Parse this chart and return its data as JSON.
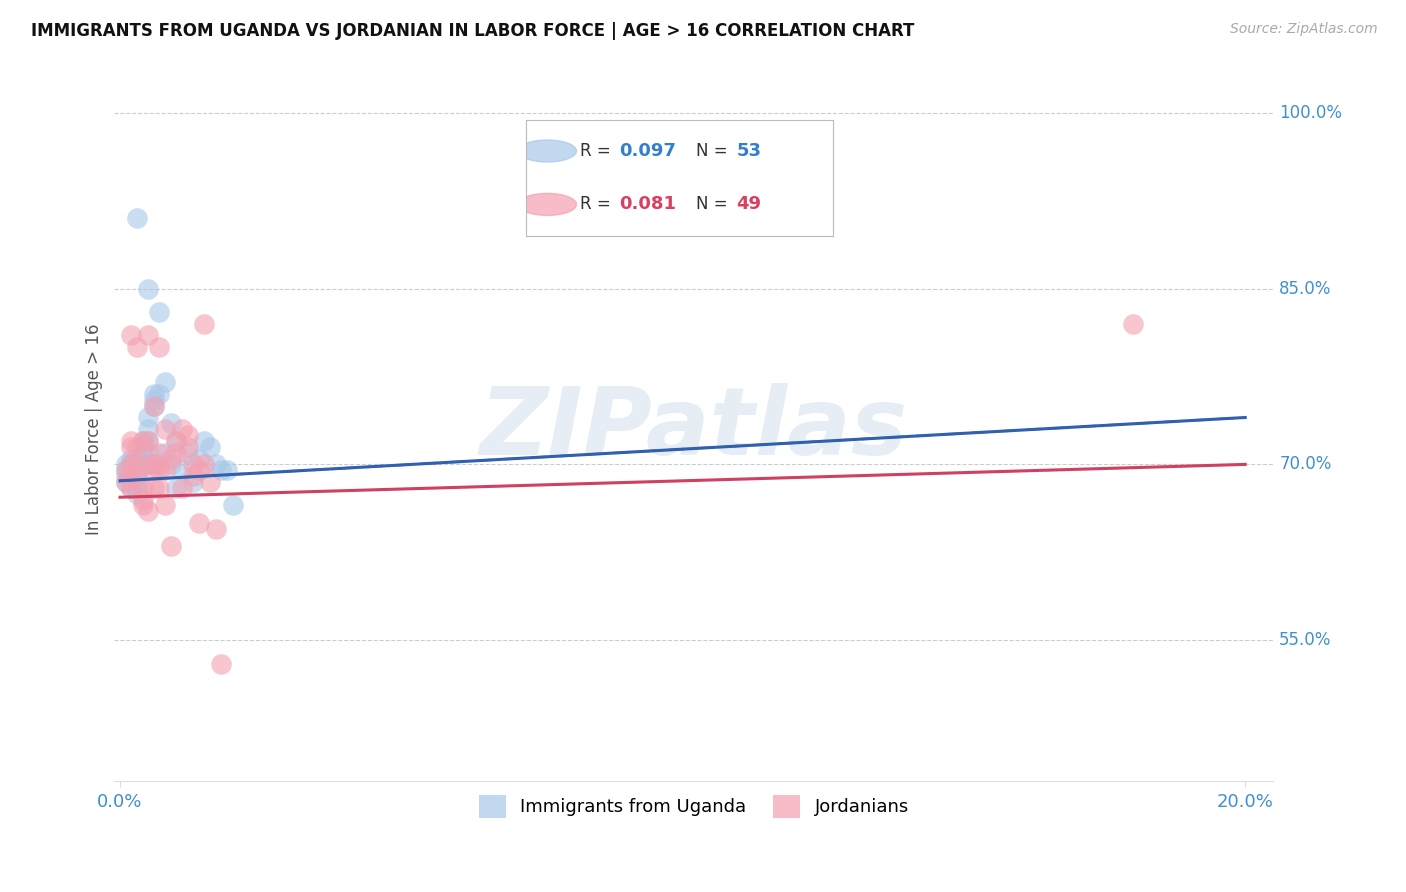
{
  "title": "IMMIGRANTS FROM UGANDA VS JORDANIAN IN LABOR FORCE | AGE > 16 CORRELATION CHART",
  "source": "Source: ZipAtlas.com",
  "ylabel": "In Labor Force | Age > 16",
  "legend1_r": "0.097",
  "legend1_n": "53",
  "legend2_r": "0.081",
  "legend2_n": "49",
  "legend_label1": "Immigrants from Uganda",
  "legend_label2": "Jordanians",
  "blue_scatter": "#a8c8e8",
  "pink_scatter": "#f4a0b0",
  "blue_line": "#3060b0",
  "pink_line": "#d04060",
  "ytick_color": "#4090d0",
  "xtick_color": "#4090d0",
  "grid_color": "#cccccc",
  "bg_color": "#ffffff",
  "watermark": "ZIPatlas",
  "uganda_x": [
    0.001,
    0.001,
    0.001,
    0.001,
    0.002,
    0.002,
    0.002,
    0.002,
    0.002,
    0.002,
    0.002,
    0.003,
    0.003,
    0.003,
    0.003,
    0.003,
    0.003,
    0.003,
    0.004,
    0.004,
    0.004,
    0.004,
    0.004,
    0.005,
    0.005,
    0.005,
    0.005,
    0.005,
    0.006,
    0.006,
    0.006,
    0.006,
    0.007,
    0.007,
    0.007,
    0.008,
    0.008,
    0.009,
    0.009,
    0.01,
    0.01,
    0.011,
    0.012,
    0.013,
    0.014,
    0.015,
    0.016,
    0.017,
    0.018,
    0.019,
    0.02,
    0.005,
    0.003
  ],
  "uganda_y": [
    0.7,
    0.69,
    0.695,
    0.685,
    0.695,
    0.7,
    0.705,
    0.68,
    0.69,
    0.695,
    0.7,
    0.7,
    0.695,
    0.705,
    0.69,
    0.68,
    0.675,
    0.685,
    0.72,
    0.715,
    0.71,
    0.7,
    0.705,
    0.74,
    0.73,
    0.72,
    0.71,
    0.7,
    0.75,
    0.755,
    0.76,
    0.7,
    0.83,
    0.76,
    0.7,
    0.77,
    0.71,
    0.735,
    0.7,
    0.72,
    0.68,
    0.695,
    0.71,
    0.685,
    0.705,
    0.72,
    0.715,
    0.7,
    0.695,
    0.695,
    0.665,
    0.85,
    0.91
  ],
  "jordan_x": [
    0.001,
    0.001,
    0.002,
    0.002,
    0.002,
    0.002,
    0.002,
    0.002,
    0.003,
    0.003,
    0.003,
    0.003,
    0.004,
    0.004,
    0.004,
    0.004,
    0.005,
    0.005,
    0.005,
    0.005,
    0.006,
    0.006,
    0.006,
    0.006,
    0.007,
    0.007,
    0.007,
    0.007,
    0.008,
    0.008,
    0.008,
    0.009,
    0.009,
    0.01,
    0.01,
    0.011,
    0.011,
    0.012,
    0.012,
    0.013,
    0.013,
    0.014,
    0.014,
    0.015,
    0.015,
    0.016,
    0.017,
    0.018,
    0.18
  ],
  "jordan_y": [
    0.685,
    0.695,
    0.7,
    0.72,
    0.68,
    0.69,
    0.81,
    0.715,
    0.8,
    0.7,
    0.715,
    0.69,
    0.72,
    0.68,
    0.665,
    0.67,
    0.81,
    0.7,
    0.72,
    0.66,
    0.75,
    0.7,
    0.68,
    0.695,
    0.71,
    0.695,
    0.68,
    0.8,
    0.73,
    0.695,
    0.665,
    0.705,
    0.63,
    0.72,
    0.71,
    0.73,
    0.68,
    0.725,
    0.715,
    0.7,
    0.69,
    0.695,
    0.65,
    0.7,
    0.82,
    0.685,
    0.645,
    0.53,
    0.82
  ],
  "xlim": [
    -0.001,
    0.205
  ],
  "ylim": [
    0.43,
    1.03
  ],
  "yticks": [
    0.55,
    0.7,
    0.85,
    1.0
  ],
  "ytick_labels": [
    "55.0%",
    "70.0%",
    "85.0%",
    "100.0%"
  ],
  "xtick_positions": [
    0.0,
    0.2
  ],
  "xtick_labels": [
    "0.0%",
    "20.0%"
  ],
  "uganda_line_x0": 0.0,
  "uganda_line_y0": 0.686,
  "uganda_line_x1": 0.2,
  "uganda_line_y1": 0.74,
  "jordan_line_x0": 0.0,
  "jordan_line_y0": 0.672,
  "jordan_line_x1": 0.2,
  "jordan_line_y1": 0.7
}
